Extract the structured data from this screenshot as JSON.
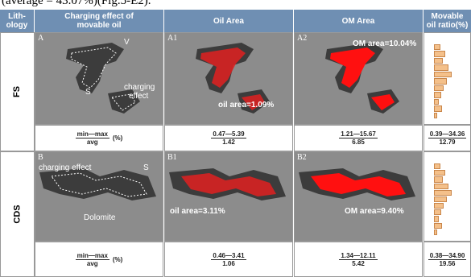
{
  "caption_fragment": "(average = 43.07%)(Fig.5-E2).",
  "table": {
    "headers": [
      [
        "Lith-",
        "ology"
      ],
      [
        "Charging effect of",
        "movable oil"
      ],
      [
        "Oil Area"
      ],
      [
        "OM Area"
      ],
      [
        "Movable",
        "oil ratio(%)"
      ]
    ],
    "stat_label": {
      "top": "min—max",
      "bottom": "avg",
      "unit": "(%)"
    },
    "rows": [
      {
        "lithology": "FS",
        "panels": [
          "A",
          "A1",
          "A2"
        ],
        "annotations": {
          "charging": [
            "V",
            "S",
            "charging",
            "effect"
          ],
          "oil": "oil area=1.09%",
          "om": "OM area=10.04%"
        },
        "stats": {
          "oil": [
            "0.47—5.39",
            "1.42"
          ],
          "om": [
            "1.21—15.67",
            "6.85"
          ],
          "movable": [
            "0.39—34.36",
            "12.79"
          ]
        }
      },
      {
        "lithology": "CDS",
        "panels": [
          "B",
          "B1",
          "B2"
        ],
        "annotations": {
          "charging": [
            "charging effect",
            "S",
            "Dolomite"
          ],
          "oil": "oil area=3.11%",
          "om": "OM area=9.40%"
        },
        "stats": {
          "oil": [
            "0.46—3.41",
            "1.06"
          ],
          "om": [
            "1.34—12.11",
            "5.42"
          ],
          "movable": [
            "0.38—34.90",
            "19.56"
          ]
        }
      }
    ]
  }
}
